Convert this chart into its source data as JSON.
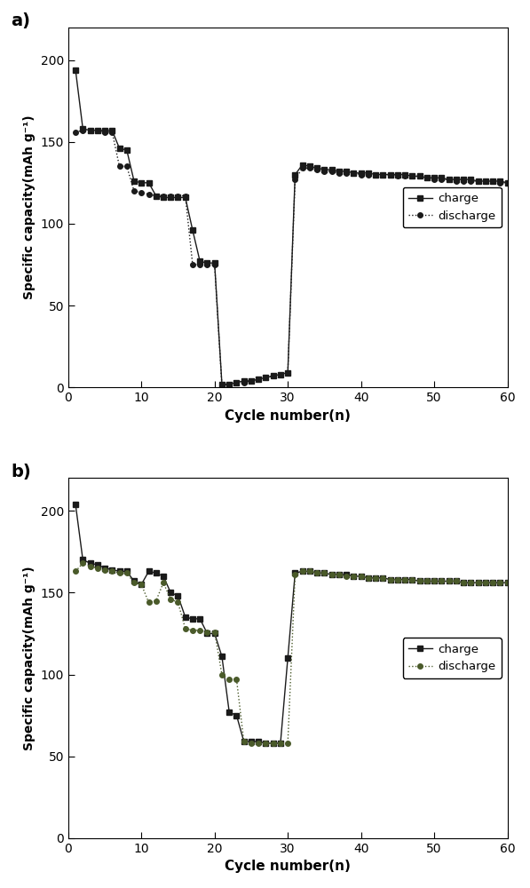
{
  "panel_a": {
    "charge_x": [
      1,
      2,
      3,
      4,
      5,
      6,
      7,
      8,
      9,
      10,
      11,
      12,
      13,
      14,
      15,
      16,
      17,
      18,
      19,
      20,
      21,
      22,
      23,
      24,
      25,
      26,
      27,
      28,
      29,
      30,
      31,
      32,
      33,
      34,
      35,
      36,
      37,
      38,
      39,
      40,
      41,
      42,
      43,
      44,
      45,
      46,
      47,
      48,
      49,
      50,
      51,
      52,
      53,
      54,
      55,
      56,
      57,
      58,
      59,
      60
    ],
    "charge_y": [
      194,
      158,
      157,
      157,
      157,
      157,
      146,
      145,
      126,
      125,
      125,
      117,
      116,
      116,
      116,
      116,
      96,
      77,
      76,
      76,
      2,
      2,
      3,
      4,
      4,
      5,
      6,
      7,
      8,
      9,
      130,
      136,
      135,
      134,
      133,
      133,
      132,
      132,
      131,
      131,
      131,
      130,
      130,
      130,
      130,
      130,
      129,
      129,
      128,
      128,
      128,
      127,
      127,
      127,
      127,
      126,
      126,
      126,
      126,
      125
    ],
    "discharge_x": [
      1,
      2,
      3,
      4,
      5,
      6,
      7,
      8,
      9,
      10,
      11,
      12,
      13,
      14,
      15,
      16,
      17,
      18,
      19,
      20,
      21,
      22,
      23,
      24,
      25,
      26,
      27,
      28,
      29,
      30,
      31,
      32,
      33,
      34,
      35,
      36,
      37,
      38,
      39,
      40,
      41,
      42,
      43,
      44,
      45,
      46,
      47,
      48,
      49,
      50,
      51,
      52,
      53,
      54,
      55,
      56,
      57,
      58,
      59,
      60
    ],
    "discharge_y": [
      156,
      157,
      157,
      157,
      156,
      156,
      135,
      135,
      120,
      119,
      118,
      117,
      117,
      117,
      117,
      117,
      75,
      75,
      75,
      75,
      1,
      2,
      3,
      3,
      4,
      5,
      6,
      7,
      8,
      9,
      127,
      134,
      134,
      133,
      132,
      132,
      131,
      131,
      131,
      130,
      130,
      130,
      130,
      130,
      129,
      129,
      129,
      129,
      128,
      127,
      127,
      127,
      126,
      126,
      126,
      126,
      126,
      126,
      125,
      125
    ]
  },
  "panel_b": {
    "charge_x": [
      1,
      2,
      3,
      4,
      5,
      6,
      7,
      8,
      9,
      10,
      11,
      12,
      13,
      14,
      15,
      16,
      17,
      18,
      19,
      20,
      21,
      22,
      23,
      24,
      25,
      26,
      27,
      28,
      29,
      30,
      31,
      32,
      33,
      34,
      35,
      36,
      37,
      38,
      39,
      40,
      41,
      42,
      43,
      44,
      45,
      46,
      47,
      48,
      49,
      50,
      51,
      52,
      53,
      54,
      55,
      56,
      57,
      58,
      59,
      60
    ],
    "charge_y": [
      204,
      170,
      168,
      167,
      165,
      164,
      163,
      163,
      157,
      155,
      163,
      162,
      160,
      150,
      148,
      135,
      134,
      134,
      125,
      125,
      111,
      77,
      75,
      59,
      59,
      59,
      58,
      58,
      58,
      110,
      162,
      163,
      163,
      162,
      162,
      161,
      161,
      161,
      160,
      160,
      159,
      159,
      159,
      158,
      158,
      158,
      158,
      157,
      157,
      157,
      157,
      157,
      157,
      156,
      156,
      156,
      156,
      156,
      156,
      156
    ],
    "discharge_x": [
      1,
      2,
      3,
      4,
      5,
      6,
      7,
      8,
      9,
      10,
      11,
      12,
      13,
      14,
      15,
      16,
      17,
      18,
      19,
      20,
      21,
      22,
      23,
      24,
      25,
      26,
      27,
      28,
      29,
      30,
      31,
      32,
      33,
      34,
      35,
      36,
      37,
      38,
      39,
      40,
      41,
      42,
      43,
      44,
      45,
      46,
      47,
      48,
      49,
      50,
      51,
      52,
      53,
      54,
      55,
      56,
      57,
      58,
      59,
      60
    ],
    "discharge_y": [
      163,
      168,
      166,
      165,
      164,
      163,
      162,
      162,
      156,
      155,
      144,
      145,
      156,
      146,
      144,
      128,
      127,
      127,
      126,
      126,
      100,
      97,
      97,
      59,
      58,
      58,
      58,
      58,
      58,
      58,
      161,
      163,
      163,
      162,
      162,
      161,
      161,
      160,
      160,
      160,
      159,
      159,
      159,
      158,
      158,
      158,
      158,
      157,
      157,
      157,
      157,
      157,
      157,
      156,
      156,
      156,
      156,
      156,
      156,
      156
    ]
  },
  "ylim": [
    0,
    220
  ],
  "xlim": [
    0,
    60
  ],
  "yticks": [
    0,
    50,
    100,
    150,
    200
  ],
  "xticks": [
    0,
    10,
    20,
    30,
    40,
    50,
    60
  ],
  "ylabel": "Specific capacity(mAh g⁻¹)",
  "xlabel": "Cycle number(n)",
  "charge_color_a": "#1a1a1a",
  "discharge_color_a": "#1a1a1a",
  "charge_color_b": "#1a1a1a",
  "discharge_color_b": "#4a5a2a",
  "charge_marker": "s",
  "discharge_marker": "o",
  "markersize_a": 4,
  "markersize_b": 4,
  "linewidth": 1.0,
  "legend_charge": "charge",
  "legend_discharge": "discharge",
  "label_a": "a)",
  "label_b": "b)"
}
